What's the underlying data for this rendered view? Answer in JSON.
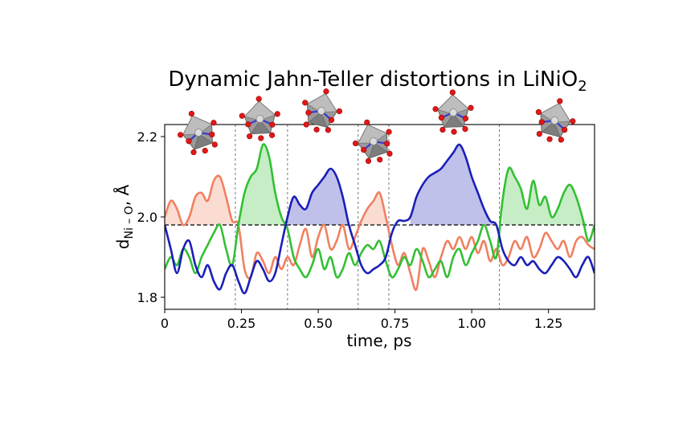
{
  "chart_data": {
    "type": "line",
    "title": "Dynamic Jahn-Teller distortions in LiNiO",
    "title_subscript": "2",
    "xlabel": "time, ps",
    "ylabel": "d",
    "ylabel_subscript": "Ni – O",
    "ylabel_unit": ", Å",
    "xlim": [
      0,
      1.4
    ],
    "ylim": [
      1.77,
      2.23
    ],
    "xticks": [
      0,
      0.25,
      0.5,
      0.75,
      1.0,
      1.25
    ],
    "xtick_labels": [
      "0",
      "0.25",
      "0.50",
      "0.75",
      "1.00",
      "1.25"
    ],
    "yticks": [
      1.8,
      2.0,
      2.2
    ],
    "ytick_labels": [
      "1.8",
      "2.0",
      "2.2"
    ],
    "reference_line": 1.98,
    "phase_boundaries": [
      0.23,
      0.4,
      0.63,
      0.73,
      1.09
    ],
    "grid": false,
    "legend": "none",
    "colors": {
      "blue": "#1a1fb8",
      "orange": "#f08060",
      "green": "#33c033",
      "octahedron_body": "#9a9a9a",
      "oxygen": "#e01818",
      "bond": "#3a3ad0"
    },
    "octahedra_icons": [
      {
        "name": "octahedron-1",
        "t": 0.11
      },
      {
        "name": "octahedron-2",
        "t": 0.31
      },
      {
        "name": "octahedron-3",
        "t": 0.51
      },
      {
        "name": "octahedron-4",
        "t": 0.68
      },
      {
        "name": "octahedron-5",
        "t": 0.94
      },
      {
        "name": "octahedron-6",
        "t": 1.27
      }
    ],
    "series": [
      {
        "color": "blue",
        "fill_segments": [
          [
            0.4,
            0.63
          ],
          [
            0.8,
            1.09
          ]
        ],
        "x": [
          0,
          0.02,
          0.04,
          0.06,
          0.08,
          0.1,
          0.12,
          0.14,
          0.16,
          0.18,
          0.2,
          0.22,
          0.24,
          0.26,
          0.28,
          0.3,
          0.32,
          0.34,
          0.36,
          0.38,
          0.4,
          0.42,
          0.44,
          0.46,
          0.48,
          0.5,
          0.52,
          0.54,
          0.56,
          0.58,
          0.6,
          0.62,
          0.64,
          0.66,
          0.68,
          0.7,
          0.72,
          0.74,
          0.76,
          0.78,
          0.8,
          0.82,
          0.84,
          0.86,
          0.88,
          0.9,
          0.92,
          0.94,
          0.96,
          0.98,
          1.0,
          1.02,
          1.04,
          1.06,
          1.08,
          1.1,
          1.12,
          1.14,
          1.16,
          1.18,
          1.2,
          1.22,
          1.24,
          1.26,
          1.28,
          1.3,
          1.32,
          1.34,
          1.36,
          1.38,
          1.4
        ],
        "y": [
          1.98,
          1.92,
          1.86,
          1.92,
          1.94,
          1.88,
          1.85,
          1.88,
          1.84,
          1.82,
          1.86,
          1.88,
          1.84,
          1.81,
          1.85,
          1.89,
          1.87,
          1.84,
          1.86,
          1.93,
          2.0,
          2.05,
          2.03,
          2.02,
          2.06,
          2.08,
          2.1,
          2.12,
          2.1,
          2.05,
          1.98,
          1.93,
          1.88,
          1.86,
          1.87,
          1.88,
          1.9,
          1.96,
          1.99,
          1.99,
          2.0,
          2.05,
          2.08,
          2.1,
          2.11,
          2.12,
          2.14,
          2.16,
          2.18,
          2.15,
          2.1,
          2.06,
          2.02,
          1.99,
          1.98,
          1.92,
          1.89,
          1.88,
          1.9,
          1.88,
          1.89,
          1.87,
          1.86,
          1.88,
          1.9,
          1.89,
          1.87,
          1.85,
          1.88,
          1.9,
          1.86
        ]
      },
      {
        "color": "orange",
        "fill_segments": [
          [
            0.0,
            0.23
          ],
          [
            0.63,
            0.73
          ]
        ],
        "x": [
          0,
          0.02,
          0.04,
          0.06,
          0.08,
          0.1,
          0.12,
          0.14,
          0.16,
          0.18,
          0.2,
          0.22,
          0.24,
          0.26,
          0.28,
          0.3,
          0.32,
          0.34,
          0.36,
          0.38,
          0.4,
          0.42,
          0.44,
          0.46,
          0.48,
          0.5,
          0.52,
          0.54,
          0.56,
          0.58,
          0.6,
          0.62,
          0.64,
          0.66,
          0.68,
          0.7,
          0.72,
          0.74,
          0.76,
          0.78,
          0.8,
          0.82,
          0.84,
          0.86,
          0.88,
          0.9,
          0.92,
          0.94,
          0.96,
          0.98,
          1.0,
          1.02,
          1.04,
          1.06,
          1.08,
          1.1,
          1.12,
          1.14,
          1.16,
          1.18,
          1.2,
          1.22,
          1.24,
          1.26,
          1.28,
          1.3,
          1.32,
          1.34,
          1.36,
          1.38,
          1.4
        ],
        "y": [
          2.0,
          2.04,
          2.02,
          1.98,
          2.0,
          2.05,
          2.06,
          2.04,
          2.09,
          2.1,
          2.05,
          1.99,
          1.98,
          1.87,
          1.85,
          1.91,
          1.89,
          1.86,
          1.9,
          1.87,
          1.9,
          1.88,
          1.93,
          1.97,
          1.9,
          1.95,
          1.98,
          1.92,
          1.94,
          1.98,
          1.92,
          1.95,
          1.99,
          2.02,
          2.04,
          2.06,
          2.0,
          1.93,
          1.88,
          1.91,
          1.86,
          1.82,
          1.92,
          1.89,
          1.85,
          1.9,
          1.94,
          1.92,
          1.95,
          1.92,
          1.95,
          1.91,
          1.94,
          1.89,
          1.92,
          1.88,
          1.9,
          1.94,
          1.92,
          1.95,
          1.9,
          1.92,
          1.96,
          1.94,
          1.92,
          1.94,
          1.9,
          1.94,
          1.95,
          1.93,
          1.92
        ]
      },
      {
        "color": "green",
        "fill_segments": [
          [
            0.23,
            0.4
          ],
          [
            1.09,
            1.4
          ]
        ],
        "x": [
          0,
          0.02,
          0.04,
          0.06,
          0.08,
          0.1,
          0.12,
          0.14,
          0.16,
          0.18,
          0.2,
          0.22,
          0.24,
          0.26,
          0.28,
          0.3,
          0.32,
          0.34,
          0.36,
          0.38,
          0.4,
          0.42,
          0.44,
          0.46,
          0.48,
          0.5,
          0.52,
          0.54,
          0.56,
          0.58,
          0.6,
          0.62,
          0.64,
          0.66,
          0.68,
          0.7,
          0.72,
          0.74,
          0.76,
          0.78,
          0.8,
          0.82,
          0.84,
          0.86,
          0.88,
          0.9,
          0.92,
          0.94,
          0.96,
          0.98,
          1.0,
          1.02,
          1.04,
          1.06,
          1.08,
          1.1,
          1.12,
          1.14,
          1.16,
          1.18,
          1.2,
          1.22,
          1.24,
          1.26,
          1.28,
          1.3,
          1.32,
          1.34,
          1.36,
          1.38,
          1.4
        ],
        "y": [
          1.87,
          1.9,
          1.88,
          1.92,
          1.9,
          1.86,
          1.9,
          1.93,
          1.96,
          1.98,
          1.92,
          1.88,
          1.98,
          2.06,
          2.1,
          2.12,
          2.18,
          2.15,
          2.06,
          2.0,
          1.97,
          1.9,
          1.87,
          1.85,
          1.88,
          1.92,
          1.87,
          1.9,
          1.85,
          1.87,
          1.91,
          1.88,
          1.91,
          1.93,
          1.92,
          1.94,
          1.89,
          1.85,
          1.87,
          1.9,
          1.88,
          1.92,
          1.89,
          1.85,
          1.87,
          1.89,
          1.85,
          1.9,
          1.92,
          1.88,
          1.91,
          1.94,
          1.98,
          1.94,
          1.9,
          2.04,
          2.12,
          2.1,
          2.07,
          2.02,
          2.09,
          2.03,
          2.05,
          2.0,
          2.02,
          2.06,
          2.08,
          2.05,
          2.0,
          1.94,
          1.98
        ]
      }
    ]
  }
}
